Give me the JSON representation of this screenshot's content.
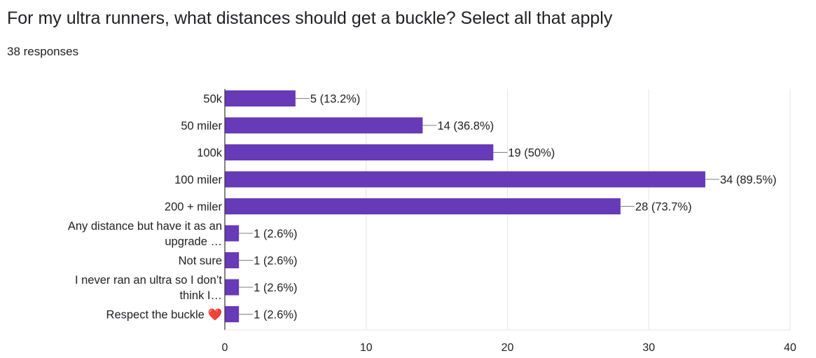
{
  "question": {
    "title": "For my ultra runners, what distances should get a buckle? Select all that apply",
    "responses": "38 responses"
  },
  "colors": {
    "bar": "#673ab7",
    "grid": "#e6e6e6",
    "axis": "#333333",
    "leader": "#7f7f7f"
  },
  "chart_data": {
    "type": "bar",
    "orientation": "horizontal",
    "categories": [
      [
        "50k"
      ],
      [
        "50 miler"
      ],
      [
        "100k"
      ],
      [
        "100 miler"
      ],
      [
        "200 + miler"
      ],
      [
        "Any distance but have it as an",
        "upgrade …"
      ],
      [
        "Not sure"
      ],
      [
        "I never ran an ultra so I don’t",
        "think I…"
      ],
      [
        "Respect the buckle ❤️"
      ]
    ],
    "values": [
      5,
      14,
      19,
      34,
      28,
      1,
      1,
      1,
      1
    ],
    "data_labels": [
      "5 (13.2%)",
      "14 (36.8%)",
      "19 (50%)",
      "34 (89.5%)",
      "28 (73.7%)",
      "1 (2.6%)",
      "1 (2.6%)",
      "1 (2.6%)",
      "1 (2.6%)"
    ],
    "xlim": [
      0,
      40
    ],
    "xticks": [
      "0",
      "10",
      "20",
      "30",
      "40"
    ],
    "grid": true,
    "legend": "none"
  }
}
